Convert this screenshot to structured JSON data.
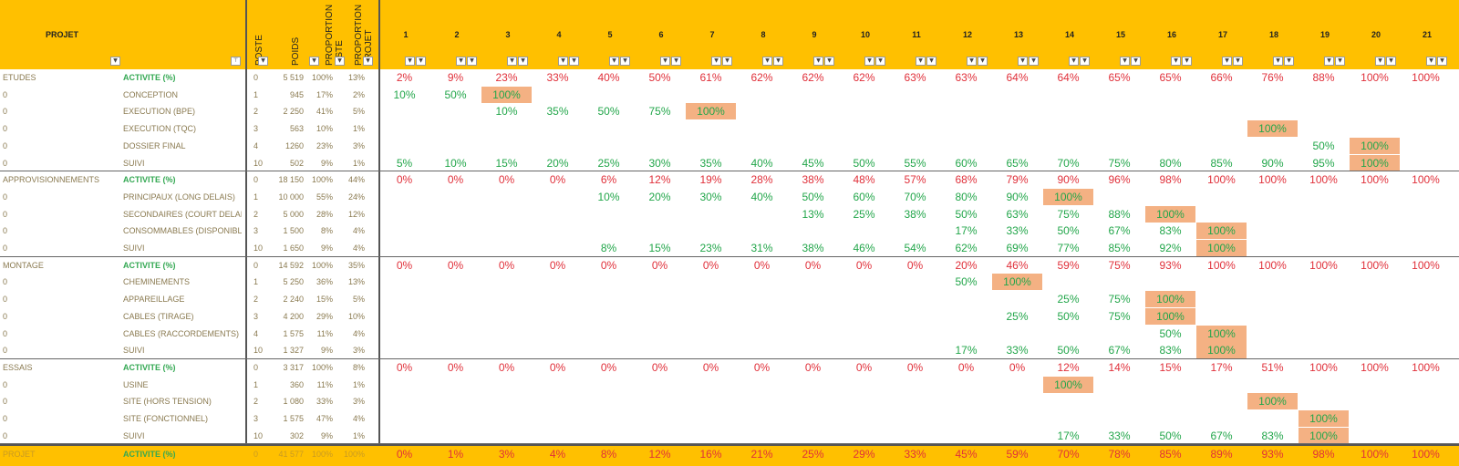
{
  "header": {
    "projet": "PROJET",
    "poste": "POSTE",
    "poids": "POIDS",
    "prop_liste": "PROPORTION LISTE",
    "prop_projet": "PROPORTION PROJET",
    "weeks": [
      "1",
      "2",
      "3",
      "4",
      "5",
      "6",
      "7",
      "8",
      "9",
      "10",
      "11",
      "12",
      "13",
      "14",
      "15",
      "16",
      "17",
      "18",
      "19",
      "20",
      "21"
    ]
  },
  "groups": [
    {
      "rows": [
        {
          "name": "ETUDES",
          "act": "ACTIVITE (%)",
          "poste": "0",
          "poids": "5 519",
          "pl": "100%",
          "pp": "13%",
          "kind": "sum",
          "start": 1,
          "vals": [
            "2%",
            "9%",
            "23%",
            "33%",
            "40%",
            "50%",
            "61%",
            "62%",
            "62%",
            "62%",
            "63%",
            "63%",
            "64%",
            "64%",
            "65%",
            "65%",
            "66%",
            "76%",
            "88%",
            "100%",
            "100%"
          ]
        },
        {
          "name": "0",
          "act": "CONCEPTION",
          "poste": "1",
          "poids": "945",
          "pl": "17%",
          "pp": "2%",
          "kind": "sub",
          "start": 1,
          "vals": [
            "10%",
            "50%",
            "100%"
          ]
        },
        {
          "name": "0",
          "act": "EXECUTION (BPE)",
          "poste": "2",
          "poids": "2 250",
          "pl": "41%",
          "pp": "5%",
          "kind": "sub",
          "start": 3,
          "vals": [
            "10%",
            "35%",
            "50%",
            "75%",
            "100%"
          ]
        },
        {
          "name": "0",
          "act": "EXECUTION (TQC)",
          "poste": "3",
          "poids": "563",
          "pl": "10%",
          "pp": "1%",
          "kind": "sub",
          "start": 18,
          "vals": [
            "100%"
          ]
        },
        {
          "name": "0",
          "act": "DOSSIER FINAL",
          "poste": "4",
          "poids": "1260",
          "pl": "23%",
          "pp": "3%",
          "kind": "sub",
          "start": 19,
          "vals": [
            "50%",
            "100%"
          ]
        },
        {
          "name": "0",
          "act": "SUIVI",
          "poste": "10",
          "poids": "502",
          "pl": "9%",
          "pp": "1%",
          "kind": "sub",
          "start": 1,
          "vals": [
            "5%",
            "10%",
            "15%",
            "20%",
            "25%",
            "30%",
            "35%",
            "40%",
            "45%",
            "50%",
            "55%",
            "60%",
            "65%",
            "70%",
            "75%",
            "80%",
            "85%",
            "90%",
            "95%",
            "100%"
          ]
        }
      ]
    },
    {
      "rows": [
        {
          "name": "APPROVISIONNEMENTS",
          "act": "ACTIVITE (%)",
          "poste": "0",
          "poids": "18 150",
          "pl": "100%",
          "pp": "44%",
          "kind": "sum",
          "start": 1,
          "vals": [
            "0%",
            "0%",
            "0%",
            "0%",
            "6%",
            "12%",
            "19%",
            "28%",
            "38%",
            "48%",
            "57%",
            "68%",
            "79%",
            "90%",
            "96%",
            "98%",
            "100%",
            "100%",
            "100%",
            "100%",
            "100%"
          ]
        },
        {
          "name": "0",
          "act": "PRINCIPAUX (LONG DELAIS)",
          "poste": "1",
          "poids": "10 000",
          "pl": "55%",
          "pp": "24%",
          "kind": "sub",
          "start": 5,
          "vals": [
            "10%",
            "20%",
            "30%",
            "40%",
            "50%",
            "60%",
            "70%",
            "80%",
            "90%",
            "100%"
          ]
        },
        {
          "name": "0",
          "act": "SECONDAIRES (COURT DELAIS)",
          "poste": "2",
          "poids": "5 000",
          "pl": "28%",
          "pp": "12%",
          "kind": "sub",
          "start": 9,
          "vals": [
            "13%",
            "25%",
            "38%",
            "50%",
            "63%",
            "75%",
            "88%",
            "100%"
          ]
        },
        {
          "name": "0",
          "act": "CONSOMMABLES (DISPONIBLES)",
          "poste": "3",
          "poids": "1 500",
          "pl": "8%",
          "pp": "4%",
          "kind": "sub",
          "start": 12,
          "vals": [
            "17%",
            "33%",
            "50%",
            "67%",
            "83%",
            "100%"
          ]
        },
        {
          "name": "0",
          "act": "SUIVI",
          "poste": "10",
          "poids": "1 650",
          "pl": "9%",
          "pp": "4%",
          "kind": "sub",
          "start": 5,
          "vals": [
            "8%",
            "15%",
            "23%",
            "31%",
            "38%",
            "46%",
            "54%",
            "62%",
            "69%",
            "77%",
            "85%",
            "92%",
            "100%"
          ]
        }
      ]
    },
    {
      "rows": [
        {
          "name": "MONTAGE",
          "act": "ACTIVITE (%)",
          "poste": "0",
          "poids": "14 592",
          "pl": "100%",
          "pp": "35%",
          "kind": "sum",
          "start": 1,
          "vals": [
            "0%",
            "0%",
            "0%",
            "0%",
            "0%",
            "0%",
            "0%",
            "0%",
            "0%",
            "0%",
            "0%",
            "20%",
            "46%",
            "59%",
            "75%",
            "93%",
            "100%",
            "100%",
            "100%",
            "100%",
            "100%"
          ]
        },
        {
          "name": "0",
          "act": "CHEMINEMENTS",
          "poste": "1",
          "poids": "5 250",
          "pl": "36%",
          "pp": "13%",
          "kind": "sub",
          "start": 12,
          "vals": [
            "50%",
            "100%"
          ]
        },
        {
          "name": "0",
          "act": "APPAREILLAGE",
          "poste": "2",
          "poids": "2 240",
          "pl": "15%",
          "pp": "5%",
          "kind": "sub",
          "start": 14,
          "vals": [
            "25%",
            "75%",
            "100%"
          ]
        },
        {
          "name": "0",
          "act": "CABLES (TIRAGE)",
          "poste": "3",
          "poids": "4 200",
          "pl": "29%",
          "pp": "10%",
          "kind": "sub",
          "start": 13,
          "vals": [
            "25%",
            "50%",
            "75%",
            "100%"
          ]
        },
        {
          "name": "0",
          "act": "CABLES (RACCORDEMENTS)",
          "poste": "4",
          "poids": "1 575",
          "pl": "11%",
          "pp": "4%",
          "kind": "sub",
          "start": 16,
          "vals": [
            "50%",
            "100%"
          ]
        },
        {
          "name": "0",
          "act": "SUIVI",
          "poste": "10",
          "poids": "1 327",
          "pl": "9%",
          "pp": "3%",
          "kind": "sub",
          "start": 12,
          "vals": [
            "17%",
            "33%",
            "50%",
            "67%",
            "83%",
            "100%"
          ]
        }
      ]
    },
    {
      "rows": [
        {
          "name": "ESSAIS",
          "act": "ACTIVITE (%)",
          "poste": "0",
          "poids": "3 317",
          "pl": "100%",
          "pp": "8%",
          "kind": "sum",
          "start": 1,
          "vals": [
            "0%",
            "0%",
            "0%",
            "0%",
            "0%",
            "0%",
            "0%",
            "0%",
            "0%",
            "0%",
            "0%",
            "0%",
            "0%",
            "12%",
            "14%",
            "15%",
            "17%",
            "51%",
            "100%",
            "100%",
            "100%"
          ]
        },
        {
          "name": "0",
          "act": "USINE",
          "poste": "1",
          "poids": "360",
          "pl": "11%",
          "pp": "1%",
          "kind": "sub",
          "start": 14,
          "vals": [
            "100%"
          ]
        },
        {
          "name": "0",
          "act": "SITE (HORS TENSION)",
          "poste": "2",
          "poids": "1 080",
          "pl": "33%",
          "pp": "3%",
          "kind": "sub",
          "start": 18,
          "vals": [
            "100%"
          ]
        },
        {
          "name": "0",
          "act": "SITE (FONCTIONNEL)",
          "poste": "3",
          "poids": "1 575",
          "pl": "47%",
          "pp": "4%",
          "kind": "sub",
          "start": 19,
          "vals": [
            "100%"
          ]
        },
        {
          "name": "0",
          "act": "SUIVI",
          "poste": "10",
          "poids": "302",
          "pl": "9%",
          "pp": "1%",
          "kind": "sub",
          "start": 14,
          "vals": [
            "17%",
            "33%",
            "50%",
            "67%",
            "83%",
            "100%"
          ]
        }
      ]
    }
  ],
  "total": {
    "name": "PROJET",
    "act": "ACTIVITE (%)",
    "poste": "0",
    "poids": "41 577",
    "pl": "100%",
    "pp": "100%",
    "vals": [
      "0%",
      "1%",
      "3%",
      "4%",
      "8%",
      "12%",
      "16%",
      "21%",
      "25%",
      "29%",
      "33%",
      "45%",
      "59%",
      "70%",
      "78%",
      "85%",
      "89%",
      "93%",
      "98%",
      "100%",
      "100%"
    ]
  },
  "colors": {
    "header": "#ffc000",
    "highlight": "#f4b183",
    "red": "#e0303a",
    "green": "#22a64a",
    "label": "#8a7a50"
  }
}
